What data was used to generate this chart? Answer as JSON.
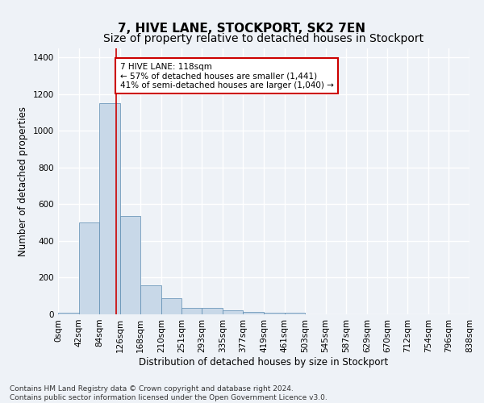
{
  "title": "7, HIVE LANE, STOCKPORT, SK2 7EN",
  "subtitle": "Size of property relative to detached houses in Stockport",
  "xlabel": "Distribution of detached houses by size in Stockport",
  "ylabel": "Number of detached properties",
  "bar_values": [
    10,
    500,
    1150,
    535,
    160,
    90,
    35,
    35,
    20,
    15,
    8,
    8,
    2,
    0,
    0,
    0,
    0,
    0,
    0,
    0
  ],
  "bin_labels": [
    "0sqm",
    "42sqm",
    "84sqm",
    "126sqm",
    "168sqm",
    "210sqm",
    "251sqm",
    "293sqm",
    "335sqm",
    "377sqm",
    "419sqm",
    "461sqm",
    "503sqm",
    "545sqm",
    "587sqm",
    "629sqm",
    "670sqm",
    "712sqm",
    "754sqm",
    "796sqm",
    "838sqm"
  ],
  "bin_edges": [
    0,
    42,
    84,
    126,
    168,
    210,
    251,
    293,
    335,
    377,
    419,
    461,
    503,
    545,
    587,
    629,
    670,
    712,
    754,
    796,
    838
  ],
  "bar_color": "#c8d8e8",
  "bar_edge_color": "#5a8ab0",
  "property_line_x": 118,
  "property_line_color": "#cc0000",
  "annotation_text": "7 HIVE LANE: 118sqm\n← 57% of detached houses are smaller (1,441)\n41% of semi-detached houses are larger (1,040) →",
  "annotation_box_color": "#ffffff",
  "annotation_box_edge_color": "#cc0000",
  "ylim": [
    0,
    1450
  ],
  "yticks": [
    0,
    200,
    400,
    600,
    800,
    1000,
    1200,
    1400
  ],
  "footer_text": "Contains HM Land Registry data © Crown copyright and database right 2024.\nContains public sector information licensed under the Open Government Licence v3.0.",
  "background_color": "#eef2f7",
  "grid_color": "#ffffff",
  "title_fontsize": 11,
  "subtitle_fontsize": 10,
  "label_fontsize": 8.5,
  "tick_fontsize": 7.5,
  "footer_fontsize": 6.5
}
